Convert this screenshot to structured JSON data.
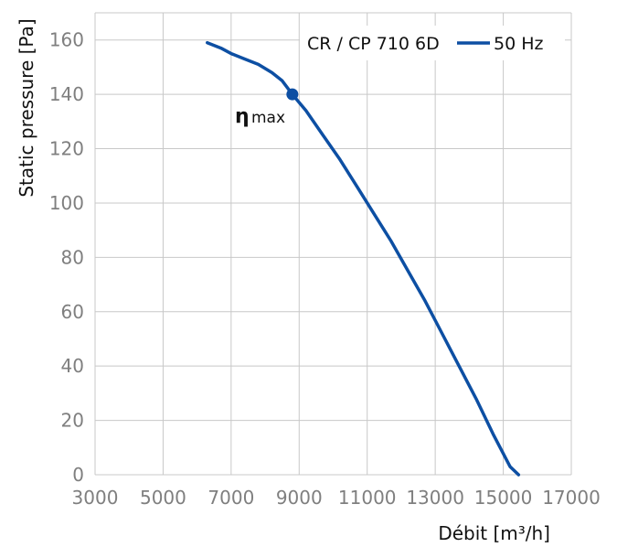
{
  "chart_data": {
    "type": "line",
    "xlabel": "Débit [m³/h]",
    "ylabel": "Static pressure [Pa]",
    "xlim": [
      3000,
      17000
    ],
    "ylim": [
      0,
      170
    ],
    "x_ticks": [
      3000,
      5000,
      7000,
      9000,
      11000,
      13000,
      15000,
      17000
    ],
    "y_ticks": [
      0,
      20,
      40,
      60,
      80,
      100,
      120,
      140,
      160
    ],
    "grid": true,
    "legend_position": "top-right",
    "legend_label": "CR / CP 710 6D",
    "series": [
      {
        "name": "50 Hz",
        "color": "#0d4fa3",
        "x": [
          6300,
          6700,
          7000,
          7400,
          7800,
          8200,
          8500,
          8800,
          9200,
          9700,
          10200,
          10700,
          11200,
          11700,
          12200,
          12700,
          13200,
          13700,
          14200,
          14700,
          15200,
          15450
        ],
        "y": [
          159,
          157,
          155,
          153,
          151,
          148,
          145,
          140,
          134,
          125,
          116,
          106,
          96,
          86,
          75,
          64,
          52,
          40,
          28,
          15,
          3,
          0
        ]
      }
    ],
    "annotations": [
      {
        "label": "η",
        "subscript": "max",
        "x": 8800,
        "y": 140
      }
    ]
  }
}
